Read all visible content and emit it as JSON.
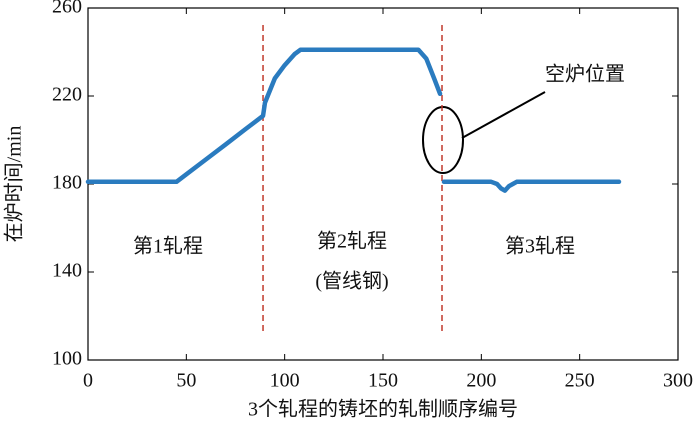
{
  "chart_data": {
    "type": "line",
    "xlabel": "3个轧程的铸坯的轧制顺序编号",
    "ylabel": "在炉时间/min",
    "x": [
      0,
      10,
      20,
      30,
      40,
      45,
      50,
      60,
      70,
      80,
      89,
      90,
      95,
      100,
      105,
      108,
      120,
      140,
      160,
      168,
      172,
      176,
      179,
      180,
      181,
      190,
      200,
      205,
      208,
      210,
      212,
      214,
      216,
      218,
      220,
      230,
      250,
      270
    ],
    "series": [
      {
        "color": "#2a7bbf",
        "values": [
          181,
          181,
          181,
          181,
          181,
          181,
          184.4,
          191.2,
          198,
          204.9,
          211,
          217,
          228,
          234,
          239,
          241,
          241,
          241,
          241,
          241,
          237,
          228,
          221,
          null,
          181,
          181,
          181,
          181,
          180,
          178,
          177,
          179,
          180,
          181,
          181,
          181,
          181,
          181
        ]
      }
    ],
    "xlim": [
      0,
      300
    ],
    "xticks": [
      0,
      50,
      100,
      150,
      200,
      250,
      300
    ],
    "ylim": [
      100,
      260
    ],
    "yticks": [
      100,
      140,
      180,
      220,
      260
    ],
    "vlines": [
      89,
      180
    ],
    "vline_color": "#c0392b",
    "annotations": [
      "第1轧程",
      "第2轧程",
      "(管线钢)",
      "第3轧程",
      "空炉位置"
    ]
  }
}
